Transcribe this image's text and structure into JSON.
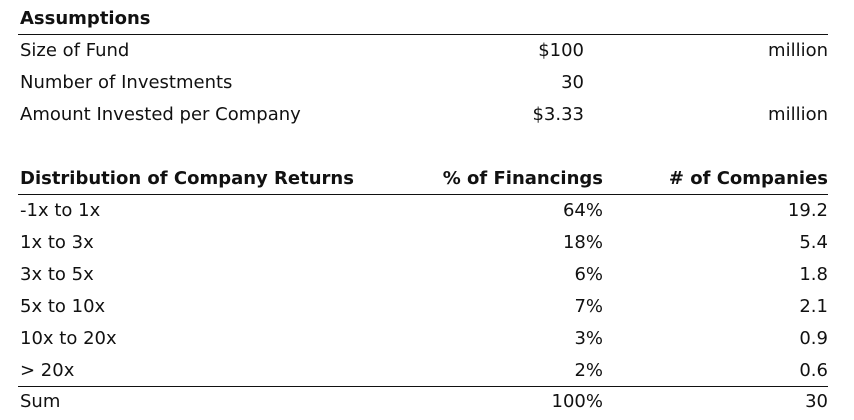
{
  "assumptions": {
    "header": "Assumptions",
    "rows": [
      {
        "label": "Size of Fund",
        "value": "$100",
        "unit": "million"
      },
      {
        "label": "Number of Investments",
        "value": "30",
        "unit": ""
      },
      {
        "label": "Amount Invested per Company",
        "value": "$3.33",
        "unit": "million"
      }
    ]
  },
  "distribution": {
    "headers": [
      "Distribution of Company Returns",
      "% of Financings",
      "# of Companies"
    ],
    "rows": [
      {
        "range": "-1x to 1x",
        "pct": "64%",
        "count": "19.2"
      },
      {
        "range": "1x to 3x",
        "pct": "18%",
        "count": "5.4"
      },
      {
        "range": "3x to 5x",
        "pct": "6%",
        "count": "1.8"
      },
      {
        "range": "5x to 10x",
        "pct": "7%",
        "count": "2.1"
      },
      {
        "range": "10x to 20x",
        "pct": "3%",
        "count": "0.9"
      },
      {
        "range": "> 20x",
        "pct": "2%",
        "count": "0.6"
      }
    ],
    "total": {
      "label": "Sum",
      "pct": "100%",
      "count": "30"
    }
  }
}
